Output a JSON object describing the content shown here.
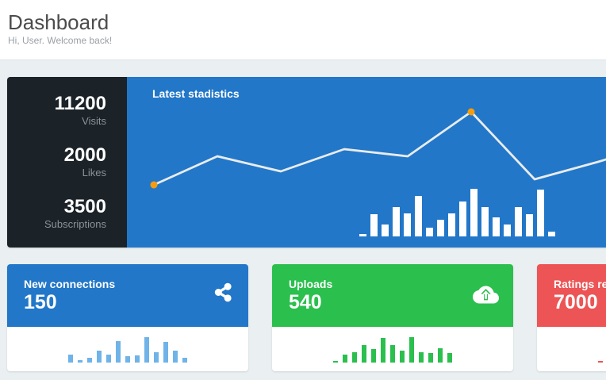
{
  "header": {
    "title": "Dashboard",
    "subtitle": "Hi, User. Welcome back!"
  },
  "stats_panel": {
    "chart_title": "Latest stadistics",
    "stats": [
      {
        "value": "11200",
        "label": "Visits"
      },
      {
        "value": "2000",
        "label": "Likes"
      },
      {
        "value": "3500",
        "label": "Subscriptions"
      }
    ]
  },
  "cards": [
    {
      "title": "New connections",
      "value": "150",
      "icon": "share-icon",
      "header_color": "#2277c8",
      "chart_id": "connections-mini-bars"
    },
    {
      "title": "Uploads",
      "value": "540",
      "icon": "cloud-upload-icon",
      "header_color": "#2bbf4e",
      "chart_id": "uploads-mini-bars"
    },
    {
      "title": "Ratings received",
      "value": "7000",
      "icon": "",
      "header_color": "#ed5455",
      "chart_id": "ratings-mini-bars"
    }
  ],
  "chart_data": [
    {
      "id": "main-line",
      "type": "line",
      "title": "Latest stadistics",
      "x": [
        1,
        2,
        3,
        4,
        5,
        6,
        7,
        8,
        9
      ],
      "series": [
        {
          "name": "trend",
          "values": [
            65,
            101,
            82,
            110,
            101,
            157,
            72,
            94,
            118
          ]
        }
      ],
      "highlighted_point_indexes": [
        0,
        5
      ],
      "line_color": "#e9ecef",
      "point_color": "#f69c0d",
      "axes_visible": false,
      "grid": false,
      "note": "unlabeled sparkline; values are relative units estimated from pixel heights",
      "layout": {
        "x0": 34,
        "dx": 80,
        "baseline_y": 201,
        "stroke_width": 2.75,
        "point_radius": 4.5
      }
    },
    {
      "id": "main-bars",
      "type": "bar",
      "values": [
        3,
        28,
        15,
        37,
        29,
        51,
        11,
        21,
        29,
        44,
        60,
        37,
        24,
        15,
        37,
        28,
        59,
        6
      ],
      "bar_color": "#ffffff",
      "axes_visible": false,
      "note": "unlabeled white bar sparkline inside blue stats panel; values are relative units estimated from pixel heights"
    },
    {
      "id": "connections-mini-bars",
      "type": "bar",
      "values": [
        10,
        3,
        6,
        15,
        10,
        27,
        8,
        9,
        32,
        13,
        26,
        15,
        6
      ],
      "bar_color": "#6fb3e8",
      "axes_visible": false,
      "note": "unlabeled sparkline under New connections card"
    },
    {
      "id": "uploads-mini-bars",
      "type": "bar",
      "values": [
        2,
        10,
        13,
        22,
        17,
        31,
        22,
        15,
        32,
        13,
        12,
        18,
        12
      ],
      "bar_color": "#2bbf4e",
      "axes_visible": false,
      "note": "unlabeled sparkline under Uploads card"
    },
    {
      "id": "ratings-mini-bars",
      "type": "bar",
      "values": [
        2,
        10,
        13,
        22,
        17,
        31,
        22,
        15,
        32,
        13,
        12,
        18,
        12
      ],
      "bar_color": "#ed5455",
      "axes_visible": false,
      "note": "sparkline under Ratings card; only first bars visible at viewport edge"
    }
  ],
  "colors": {
    "page_bg": "#eaeff2",
    "panel_dark": "#1b2328",
    "accent_blue": "#2277c8",
    "accent_green": "#2bbf4e",
    "accent_red": "#ed5455",
    "bar_lightblue": "#6fb3e8",
    "line_white": "#e9ecef",
    "point_orange": "#f69c0d"
  }
}
